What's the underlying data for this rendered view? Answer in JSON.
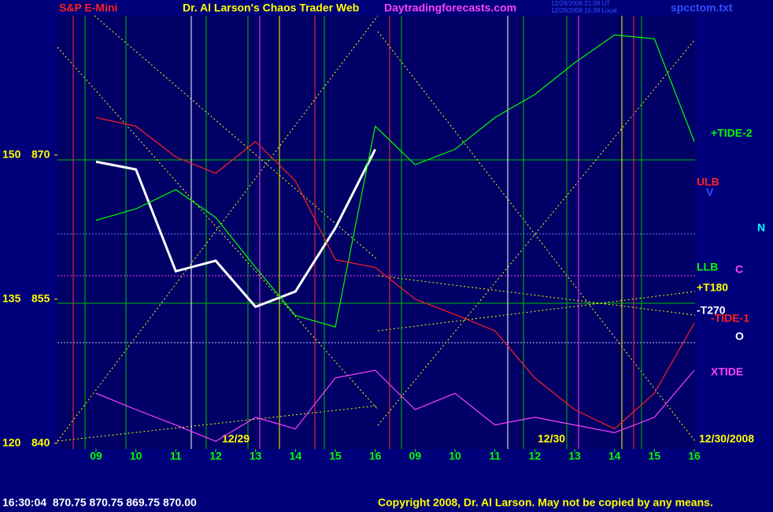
{
  "chart_data": {
    "type": "line",
    "header": {
      "symbol": "S&P E-Mini",
      "title": "Dr. Al Larson's Chaos Trader Web",
      "site": "Daytradingforecasts.com",
      "time_ut": "12/29/2008 21:38 UT",
      "time_local": "12/29/2008 16:38 Local",
      "file": "spcctom.txt"
    },
    "categories": [
      "09",
      "10",
      "11",
      "12",
      "13",
      "14",
      "15",
      "16",
      "09",
      "10",
      "11",
      "12",
      "13",
      "14",
      "15",
      "16"
    ],
    "date_labels": [
      "12/29",
      "12/30",
      "12/30/2008"
    ],
    "ylim": [
      839.4,
      884.5
    ],
    "yticks": [
      840,
      855,
      870
    ],
    "y2lim": [
      119.4,
      164.5
    ],
    "y2ticks": [
      120,
      135,
      150
    ],
    "series": [
      {
        "name": "Price",
        "color": "#ffffff",
        "values": [
          869.3,
          868.5,
          857.9,
          859,
          854.2,
          855.8,
          862.4,
          870.6,
          null,
          null,
          null,
          null,
          null,
          null,
          null,
          null
        ]
      },
      {
        "name": "+TIDE-2",
        "color": "#00ff00",
        "values": [
          863.2,
          864.4,
          866.4,
          863.5,
          858.3,
          853.3,
          852.1,
          873.0,
          869.0,
          870.6,
          873.9,
          876.3,
          879.6,
          882.5,
          882.1,
          871.4
        ]
      },
      {
        "name": "-TIDE-1",
        "color": "#ff2020",
        "values": [
          873.9,
          873.0,
          869.8,
          868.1,
          871.4,
          867.3,
          859.1,
          858.3,
          855.0,
          853.4,
          851.7,
          846.8,
          843.5,
          841.5,
          845.2,
          852.5
        ]
      },
      {
        "name": "XTIDE",
        "color": "#ff40ff",
        "values": [
          845.2,
          843.5,
          841.9,
          840.2,
          842.7,
          841.5,
          846.8,
          847.6,
          843.5,
          845.2,
          841.9,
          842.7,
          841.9,
          841.1,
          842.7,
          847.6
        ]
      }
    ],
    "annotations": [
      {
        "text": "ULB",
        "color": "#ff2020"
      },
      {
        "text": "V",
        "color": "#3050ff"
      },
      {
        "text": "N",
        "color": "#00ffff"
      },
      {
        "text": "LLB",
        "color": "#00ff00"
      },
      {
        "text": "C",
        "color": "#ff40ff"
      },
      {
        "text": "+T180",
        "color": "#ffff00"
      },
      {
        "text": "-T270",
        "color": "#ffffff"
      },
      {
        "text": "O",
        "color": "#ffffff"
      }
    ],
    "footer": {
      "quote": "16:30:04  870.75 870.75 869.75 870.00",
      "copyright": "Copyright 2008, Dr. Al Larson. May not be copied by any means."
    }
  }
}
